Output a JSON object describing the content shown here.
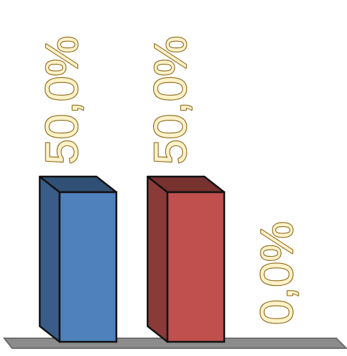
{
  "chart_data": {
    "type": "bar",
    "style": "3d-column",
    "categories": [
      "",
      "",
      ""
    ],
    "values": [
      50.0,
      50.0,
      0.0
    ],
    "data_labels": [
      "50,0%",
      "50,0%",
      "0,0%"
    ],
    "colors": [
      "#4f81bd",
      "#c0504d",
      "#9bbb59"
    ],
    "label_orientation": "vertical",
    "ylim": [
      0,
      100
    ],
    "grid": false,
    "legend": "none",
    "title": "",
    "xlabel": "",
    "ylabel": ""
  }
}
